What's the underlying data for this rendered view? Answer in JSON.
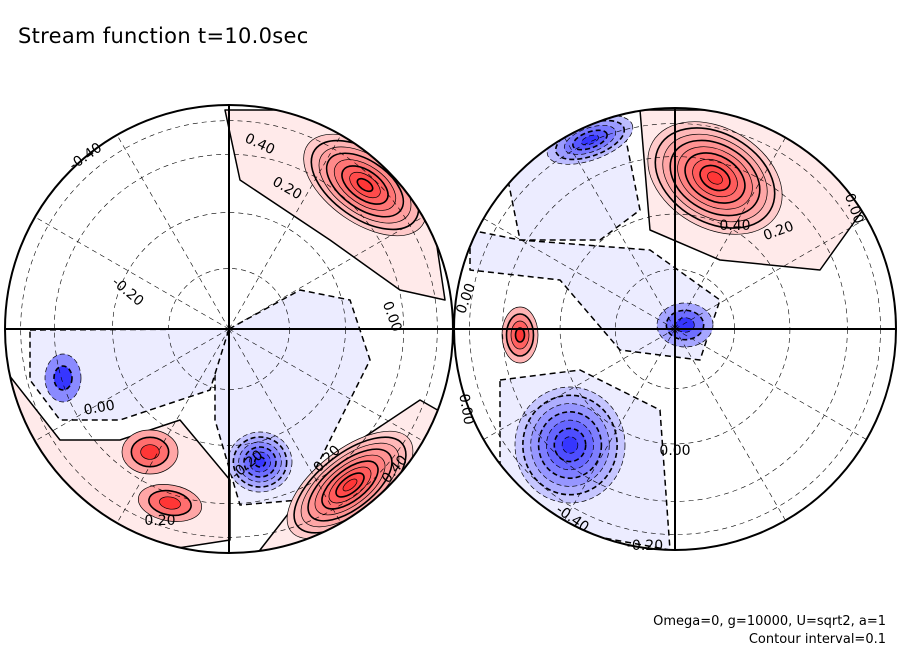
{
  "chart_data": {
    "type": "contour",
    "title": "Stream function t=10.0sec",
    "projection": "two hemispheres (polar view)",
    "contour_interval": 0.1,
    "parameters": "Omega=0, g=10000, U=sqrt2, a=1",
    "interval_label": "Contour interval=0.1",
    "color_scale": {
      "positive": "#ff2020",
      "negative": "#2020ff",
      "zero": "#ffffff"
    },
    "left_hemisphere": {
      "contour_labels": [
        "-0.40",
        "0.40",
        "0.20",
        "-0.20",
        "0.00",
        "0.00",
        "-0.20",
        "0.20",
        "0.20",
        "0.40"
      ],
      "extrema": [
        {
          "sign": "positive",
          "peak": 0.8
        },
        {
          "sign": "positive",
          "peak": 0.9
        },
        {
          "sign": "negative",
          "peak": -0.6
        },
        {
          "sign": "positive",
          "peak": 0.3
        },
        {
          "sign": "positive",
          "peak": 0.3
        },
        {
          "sign": "negative",
          "peak": -0.2
        }
      ]
    },
    "right_hemisphere": {
      "contour_labels": [
        "0.40",
        "0.20",
        "0.00",
        "0.00",
        "0.00",
        "0.00",
        "-0.40",
        "-0.20"
      ],
      "extrema": [
        {
          "sign": "positive",
          "peak": 0.9
        },
        {
          "sign": "negative",
          "peak": -0.5
        },
        {
          "sign": "negative",
          "peak": -0.7
        },
        {
          "sign": "negative",
          "peak": -0.3
        },
        {
          "sign": "positive",
          "peak": 0.4
        }
      ]
    }
  }
}
